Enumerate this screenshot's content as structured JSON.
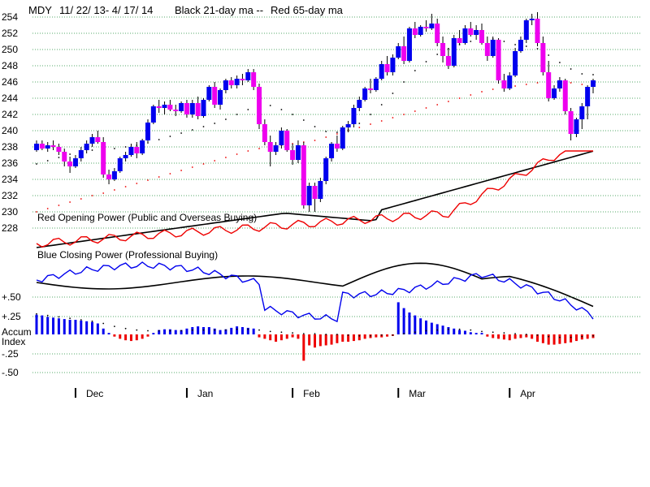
{
  "chart_data": {
    "type": "candlestick",
    "title_parts": [
      "MDY",
      "11/ 22/ 13- 4/ 17/ 14",
      "Black 21-day ma --",
      "Red 65-day ma"
    ],
    "price_axis": {
      "min": 228,
      "max": 254,
      "ticks": [
        "228",
        "230",
        "232",
        "234",
        "236",
        "238",
        "240",
        "242",
        "244",
        "246",
        "248",
        "250",
        "252",
        "254"
      ]
    },
    "month_labels": [
      {
        "label": "Dec",
        "index": 7
      },
      {
        "label": "Jan",
        "index": 27
      },
      {
        "label": "Feb",
        "index": 46
      },
      {
        "label": "Mar",
        "index": 65
      },
      {
        "label": "Apr",
        "index": 85
      }
    ],
    "candles": [
      [
        237.6,
        238.8,
        237.4,
        238.4
      ],
      [
        238.4,
        238.8,
        237.6,
        237.8
      ],
      [
        237.8,
        238.6,
        237.4,
        238.2
      ],
      [
        238.2,
        238.8,
        237.6,
        238.0
      ],
      [
        238.0,
        238.4,
        237.0,
        237.4
      ],
      [
        237.4,
        237.8,
        235.6,
        236.2
      ],
      [
        236.2,
        236.8,
        234.8,
        235.6
      ],
      [
        235.6,
        237.0,
        235.4,
        236.6
      ],
      [
        236.6,
        238.0,
        236.2,
        237.6
      ],
      [
        237.6,
        238.8,
        237.2,
        238.4
      ],
      [
        238.4,
        239.6,
        238.0,
        239.2
      ],
      [
        239.2,
        240.0,
        238.4,
        238.6
      ],
      [
        238.6,
        239.2,
        234.2,
        234.6
      ],
      [
        234.6,
        235.2,
        233.4,
        234.0
      ],
      [
        234.0,
        235.4,
        233.8,
        235.0
      ],
      [
        235.0,
        236.8,
        234.8,
        236.6
      ],
      [
        236.6,
        237.4,
        236.2,
        237.0
      ],
      [
        237.0,
        238.4,
        236.8,
        238.0
      ],
      [
        238.0,
        238.6,
        236.6,
        237.2
      ],
      [
        237.2,
        239.0,
        237.0,
        238.8
      ],
      [
        238.8,
        241.4,
        238.6,
        241.0
      ],
      [
        241.0,
        243.2,
        240.8,
        243.0
      ],
      [
        243.0,
        243.8,
        242.2,
        242.8
      ],
      [
        242.8,
        243.6,
        242.0,
        243.2
      ],
      [
        243.2,
        243.8,
        242.4,
        242.6
      ],
      [
        242.6,
        243.2,
        241.8,
        242.4
      ],
      [
        242.4,
        243.6,
        242.2,
        243.4
      ],
      [
        243.4,
        243.8,
        241.6,
        242.0
      ],
      [
        242.0,
        243.8,
        241.6,
        243.4
      ],
      [
        243.4,
        244.2,
        241.4,
        241.8
      ],
      [
        241.8,
        244.0,
        241.6,
        243.8
      ],
      [
        243.8,
        245.6,
        243.6,
        245.4
      ],
      [
        245.4,
        246.0,
        242.8,
        243.2
      ],
      [
        243.2,
        245.2,
        242.6,
        245.0
      ],
      [
        245.0,
        246.4,
        244.6,
        246.2
      ],
      [
        246.2,
        246.6,
        245.2,
        245.6
      ],
      [
        245.6,
        246.8,
        245.2,
        246.4
      ],
      [
        246.4,
        247.0,
        245.6,
        246.2
      ],
      [
        246.2,
        247.6,
        246.0,
        247.2
      ],
      [
        247.2,
        247.6,
        245.0,
        245.4
      ],
      [
        245.4,
        245.8,
        240.2,
        240.8
      ],
      [
        240.8,
        241.4,
        238.2,
        238.6
      ],
      [
        238.6,
        239.4,
        235.6,
        237.4
      ],
      [
        237.4,
        238.6,
        237.0,
        238.2
      ],
      [
        238.2,
        240.4,
        237.8,
        240.0
      ],
      [
        240.0,
        240.2,
        237.4,
        237.6
      ],
      [
        237.6,
        238.4,
        235.8,
        236.4
      ],
      [
        236.4,
        238.8,
        236.0,
        238.2
      ],
      [
        238.2,
        238.6,
        230.4,
        230.8
      ],
      [
        230.8,
        233.6,
        230.0,
        233.2
      ],
      [
        233.2,
        233.6,
        230.0,
        231.6
      ],
      [
        231.6,
        234.2,
        231.2,
        233.8
      ],
      [
        233.8,
        236.8,
        233.4,
        236.6
      ],
      [
        236.6,
        238.6,
        236.2,
        238.4
      ],
      [
        238.4,
        239.4,
        237.4,
        237.8
      ],
      [
        237.8,
        240.6,
        237.6,
        240.4
      ],
      [
        240.4,
        241.2,
        239.8,
        240.8
      ],
      [
        240.8,
        243.2,
        240.4,
        242.8
      ],
      [
        242.8,
        244.2,
        242.4,
        243.8
      ],
      [
        243.8,
        245.4,
        243.6,
        245.2
      ],
      [
        245.2,
        246.4,
        244.6,
        245.0
      ],
      [
        245.0,
        246.6,
        244.8,
        246.4
      ],
      [
        246.4,
        248.6,
        246.2,
        248.2
      ],
      [
        248.2,
        249.2,
        246.8,
        247.2
      ],
      [
        247.2,
        249.4,
        246.8,
        249.0
      ],
      [
        249.0,
        250.8,
        248.8,
        250.4
      ],
      [
        250.4,
        251.6,
        248.2,
        248.6
      ],
      [
        248.6,
        252.8,
        248.4,
        252.6
      ],
      [
        252.6,
        253.4,
        251.4,
        251.8
      ],
      [
        251.8,
        253.0,
        251.6,
        252.8
      ],
      [
        252.8,
        253.6,
        252.2,
        252.6
      ],
      [
        252.6,
        254.4,
        252.4,
        253.2
      ],
      [
        253.2,
        253.8,
        250.4,
        250.8
      ],
      [
        250.8,
        251.6,
        248.4,
        249.2
      ],
      [
        249.2,
        250.2,
        247.6,
        248.0
      ],
      [
        248.0,
        251.8,
        247.8,
        251.4
      ],
      [
        251.4,
        252.4,
        250.6,
        250.8
      ],
      [
        250.8,
        253.0,
        250.6,
        252.6
      ],
      [
        252.6,
        253.4,
        251.6,
        251.8
      ],
      [
        251.8,
        253.0,
        251.2,
        252.4
      ],
      [
        252.4,
        253.2,
        250.6,
        250.8
      ],
      [
        250.8,
        251.6,
        248.6,
        249.2
      ],
      [
        249.2,
        251.6,
        249.0,
        251.2
      ],
      [
        251.2,
        251.4,
        245.8,
        246.2
      ],
      [
        246.2,
        247.0,
        244.8,
        245.2
      ],
      [
        245.2,
        247.2,
        245.0,
        246.8
      ],
      [
        246.8,
        250.2,
        246.6,
        249.8
      ],
      [
        249.8,
        251.6,
        249.6,
        251.2
      ],
      [
        251.2,
        253.8,
        250.8,
        253.6
      ],
      [
        253.6,
        254.4,
        253.0,
        253.8
      ],
      [
        253.8,
        254.6,
        250.4,
        250.8
      ],
      [
        250.8,
        251.6,
        246.8,
        247.2
      ],
      [
        247.2,
        248.6,
        243.6,
        244.0
      ],
      [
        244.0,
        245.6,
        243.8,
        245.2
      ],
      [
        245.2,
        246.6,
        244.8,
        246.2
      ],
      [
        246.2,
        246.4,
        242.0,
        242.4
      ],
      [
        242.4,
        242.8,
        238.8,
        239.6
      ],
      [
        239.6,
        241.6,
        239.2,
        241.4
      ],
      [
        241.4,
        243.4,
        240.2,
        243.0
      ],
      [
        243.0,
        245.6,
        241.4,
        245.4
      ],
      [
        245.4,
        246.4,
        244.6,
        246.2
      ]
    ],
    "up_color": "#0000ee",
    "down_color": "#ee00ee",
    "series": [
      {
        "role": "ma21",
        "color": "#000000",
        "values": [
          235.9,
          236.1,
          236.3,
          236.5,
          236.7,
          236.9,
          237.1,
          237.2,
          237.4,
          237.5,
          237.6,
          237.7,
          237.7,
          237.8,
          237.8,
          237.9,
          238.0,
          238.1,
          238.2,
          238.3,
          238.5,
          238.7,
          238.9,
          239.1,
          239.3,
          239.5,
          239.7,
          239.9,
          240.1,
          240.3,
          240.5,
          240.7,
          240.9,
          241.2,
          241.4,
          241.7,
          242.0,
          242.3,
          242.6,
          242.9,
          243.1,
          243.2,
          243.1,
          242.9,
          242.6,
          242.3,
          242.0,
          241.7,
          241.3,
          240.9,
          240.5,
          240.2,
          239.9,
          239.8,
          239.8,
          239.9,
          240.1,
          240.4,
          240.9,
          241.4,
          242.0,
          242.6,
          243.2,
          243.9,
          244.6,
          245.3,
          246.0,
          246.7,
          247.4,
          248.0,
          248.5,
          249.0,
          249.4,
          249.8,
          250.1,
          250.4,
          250.6,
          250.8,
          251.0,
          251.1,
          251.2,
          251.3,
          251.3,
          251.2,
          251.0,
          250.8,
          250.6,
          250.5,
          250.4,
          250.3,
          250.1,
          249.8,
          249.3,
          248.8,
          248.4,
          248.0,
          247.6,
          247.3,
          247.0,
          246.9,
          246.9
        ]
      },
      {
        "role": "ma65",
        "color": "#ee0000",
        "values": [
          230.0,
          230.2,
          230.4,
          230.6,
          230.8,
          231.0,
          231.2,
          231.4,
          231.6,
          231.8,
          232.0,
          232.2,
          232.3,
          232.5,
          232.7,
          232.9,
          233.1,
          233.3,
          233.5,
          233.7,
          233.9,
          234.1,
          234.3,
          234.5,
          234.7,
          234.9,
          235.1,
          235.3,
          235.5,
          235.7,
          235.9,
          236.1,
          236.3,
          236.5,
          236.7,
          236.9,
          237.1,
          237.3,
          237.5,
          237.7,
          237.8,
          237.9,
          238.0,
          238.1,
          238.2,
          238.3,
          238.4,
          238.5,
          238.6,
          238.7,
          238.8,
          239.0,
          239.2,
          239.4,
          239.6,
          239.8,
          240.0,
          240.2,
          240.4,
          240.6,
          240.8,
          241.0,
          241.2,
          241.4,
          241.6,
          241.8,
          242.0,
          242.2,
          242.4,
          242.6,
          242.8,
          243.0,
          243.2,
          243.4,
          243.6,
          243.8,
          244.0,
          244.2,
          244.4,
          244.6,
          244.8,
          245.0,
          245.1,
          245.2,
          245.3,
          245.4,
          245.5,
          245.6,
          245.7,
          245.8,
          245.9,
          246.0,
          246.0,
          246.0,
          246.0,
          246.0,
          245.9,
          245.8,
          245.7,
          245.6,
          245.6
        ]
      }
    ],
    "panels": [
      {
        "label": "Red Opening Power (Public and Overseas Buying)"
      },
      {
        "label": "Blue Closing Power (Professional Buying)"
      }
    ],
    "accum": {
      "label_line1": "Accum",
      "label_line2": "Index",
      "ticks": [
        "+.50",
        "+.25",
        "-.25",
        "-.50"
      ],
      "values": [
        0.27,
        0.26,
        0.24,
        0.23,
        0.22,
        0.21,
        0.2,
        0.2,
        0.19,
        0.18,
        0.17,
        0.15,
        0.08,
        0.02,
        -0.03,
        -0.06,
        -0.08,
        -0.09,
        -0.08,
        -0.06,
        -0.03,
        0.02,
        0.06,
        0.07,
        0.07,
        0.06,
        0.06,
        0.08,
        0.1,
        0.11,
        0.1,
        0.1,
        0.08,
        0.06,
        0.07,
        0.09,
        0.11,
        0.1,
        0.09,
        0.08,
        -0.04,
        -0.06,
        -0.08,
        -0.1,
        -0.08,
        -0.06,
        -0.04,
        -0.06,
        -0.36,
        -0.15,
        -0.18,
        -0.16,
        -0.15,
        -0.14,
        -0.12,
        -0.1,
        -0.1,
        -0.09,
        -0.08,
        -0.06,
        -0.05,
        -0.04,
        -0.04,
        -0.03,
        -0.02,
        0.44,
        0.36,
        0.3,
        0.26,
        0.22,
        0.19,
        0.16,
        0.14,
        0.12,
        0.1,
        0.08,
        0.06,
        0.05,
        0.03,
        0.02,
        0.02,
        -0.03,
        -0.05,
        -0.06,
        -0.07,
        -0.08,
        -0.06,
        -0.05,
        -0.04,
        -0.06,
        -0.1,
        -0.12,
        -0.14,
        -0.14,
        -0.13,
        -0.12,
        -0.11,
        -0.09,
        -0.07,
        -0.06,
        -0.05
      ],
      "ma": [
        0.28,
        0.27,
        0.26,
        0.25,
        0.24,
        0.23,
        0.22,
        0.21,
        0.2,
        0.19,
        0.18,
        0.17,
        0.15,
        0.13,
        0.11,
        0.09,
        0.08,
        0.07,
        0.06,
        0.05,
        0.05,
        0.05,
        0.05,
        0.05,
        0.05,
        0.05,
        0.05,
        0.05,
        0.06,
        0.06,
        0.06,
        0.06,
        0.06,
        0.06,
        0.06,
        0.06,
        0.07,
        0.07,
        0.07,
        0.07,
        0.06,
        0.05,
        0.04,
        0.04,
        0.03,
        0.03,
        0.02,
        0.02,
        0.01,
        0.01,
        0.01,
        0.0,
        0.0,
        0.0,
        0.0,
        -0.01,
        -0.01,
        -0.01,
        -0.02,
        -0.02,
        -0.02,
        -0.02,
        -0.01,
        -0.01,
        -0.01,
        0.0,
        0.01,
        0.02,
        0.03,
        0.04,
        0.05,
        0.06,
        0.06,
        0.07,
        0.07,
        0.07,
        0.07,
        0.06,
        0.06,
        0.05,
        0.04,
        0.04,
        0.03,
        0.03,
        0.02,
        0.02,
        0.01,
        0.01,
        0.0,
        0.0,
        -0.01,
        -0.02,
        -0.03,
        -0.04,
        -0.04,
        -0.04,
        -0.04,
        -0.03,
        -0.03,
        -0.02,
        -0.02
      ],
      "up_color": "#0000ee",
      "down_color": "#ee0000"
    }
  }
}
